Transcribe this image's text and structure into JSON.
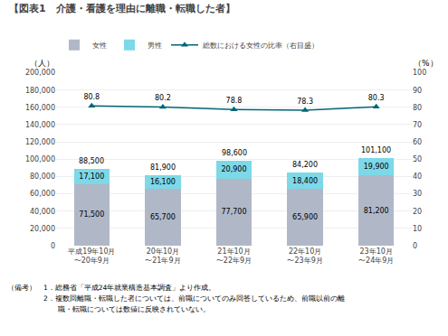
{
  "chart_data": {
    "type": "bar",
    "title": "【図表1　介護・看護を理由に離職・転職した者】",
    "categories": [
      "平成19年10月\n〜20年9月",
      "20年10月\n〜21年9月",
      "21年10月\n〜22年9月",
      "22年10月\n〜23年9月",
      "23年10月\n〜24年9月"
    ],
    "series": [
      {
        "name": "女性",
        "color": "#b0b8c8",
        "values": [
          71500,
          65700,
          77700,
          65900,
          81200
        ],
        "value_labels": [
          "71,500",
          "65,700",
          "77,700",
          "65,900",
          "81,200"
        ]
      },
      {
        "name": "男性",
        "color": "#7dd8e8",
        "values": [
          17100,
          16100,
          20900,
          18400,
          19900
        ],
        "value_labels": [
          "17,100",
          "16,100",
          "20,900",
          "18,400",
          "19,900"
        ]
      },
      {
        "name": "総数における女性の比率（右目盛）",
        "type": "line",
        "axis": "y2",
        "color": "#006677",
        "marker": "triangle-up",
        "values": [
          80.8,
          80.2,
          78.8,
          78.3,
          80.3
        ]
      }
    ],
    "totals": [
      88500,
      81900,
      98600,
      84200,
      101100
    ],
    "total_labels": [
      "88,500",
      "81,900",
      "98,600",
      "84,200",
      "101,100"
    ],
    "ylabel": "（人）",
    "y2label": "（%）",
    "ylim": [
      0,
      200000
    ],
    "yticks": [
      0,
      {
        "value": 20000,
        "label": "20,000"
      },
      {
        "value": 40000,
        "label": "40,000"
      },
      {
        "value": 60000,
        "label": "60,000"
      },
      {
        "value": 80000,
        "label": "80,000"
      },
      {
        "value": 100000,
        "label": "100,000"
      },
      {
        "value": 120000,
        "label": "120,000"
      },
      {
        "value": 140000,
        "label": "140,000"
      },
      {
        "value": 160000,
        "label": "160,000"
      },
      {
        "value": 180000,
        "label": "180,000"
      },
      {
        "value": 200000,
        "label": "200,000"
      }
    ],
    "y2lim": [
      0,
      100
    ],
    "y2ticks": [
      0,
      10,
      20,
      30,
      40,
      50,
      60,
      70,
      80,
      90,
      100
    ],
    "annotations": [
      "（備考）　1．総務省「平成24年就業構造基本調査」より作成。",
      "　　　　　2．複数回離職・転職した者については、前職についてのみ回答しているため、前職以前の離",
      "　　　　　　　職・転職については数値に反映されていない。"
    ],
    "stacked": true,
    "data_labels": true,
    "grid": true,
    "legend": "top"
  }
}
